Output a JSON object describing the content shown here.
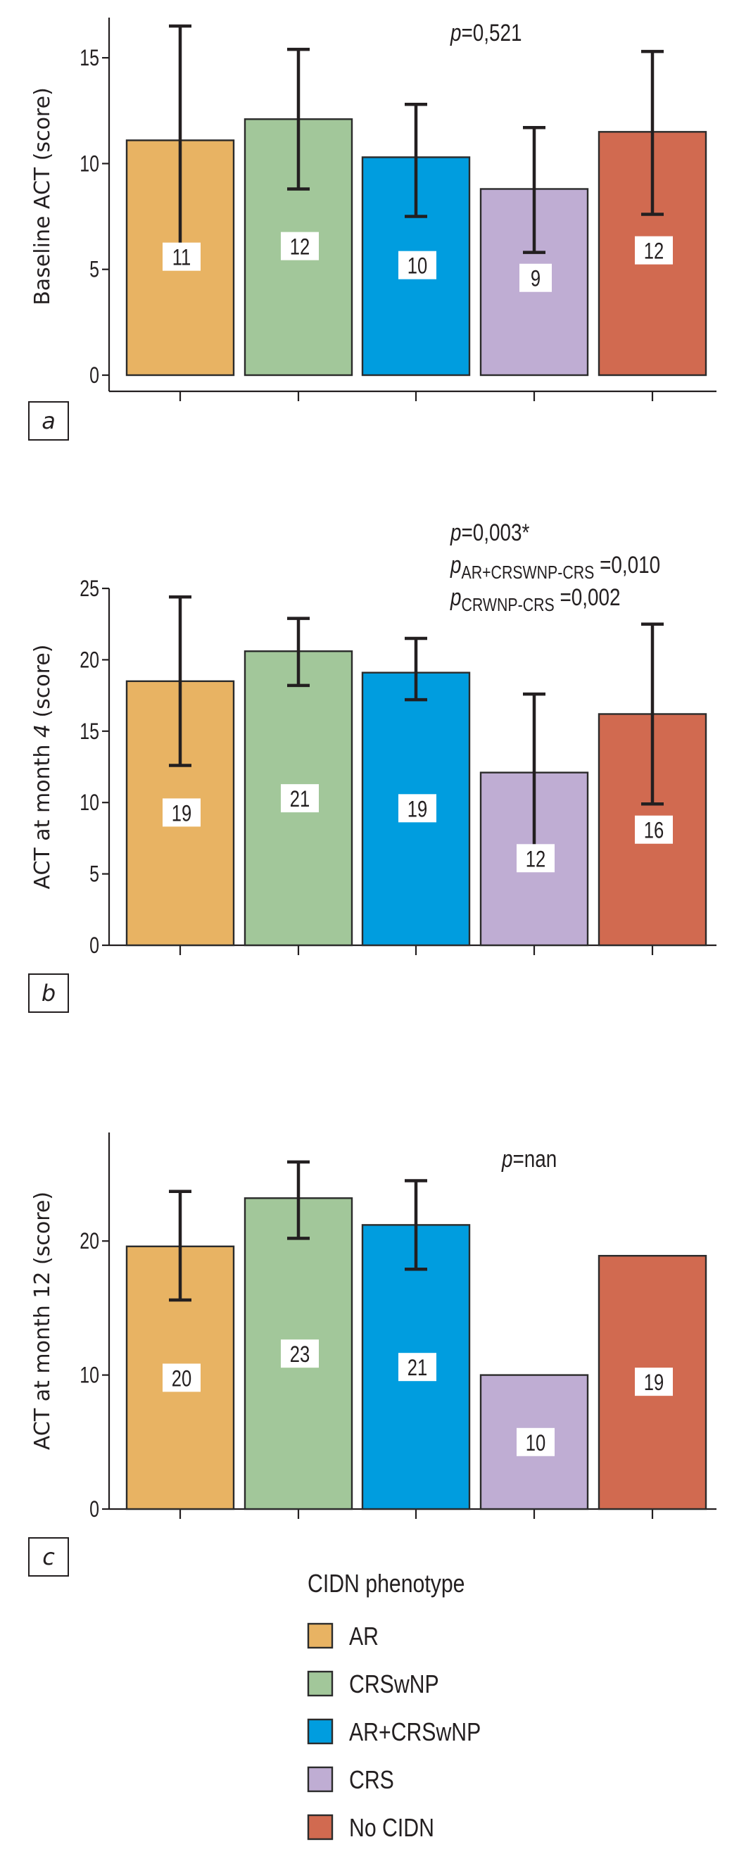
{
  "chart_data": [
    {
      "panel": "a",
      "type": "bar",
      "categories": [
        "AR",
        "CRSwNP",
        "AR+CRSwNP",
        "CRS",
        "No CIDN"
      ],
      "values": [
        11.1,
        12.1,
        10.3,
        8.8,
        11.5
      ],
      "error_low": [
        5.7,
        8.8,
        7.5,
        5.8,
        7.6
      ],
      "error_high": [
        16.5,
        15.4,
        12.8,
        11.7,
        15.3
      ],
      "data_labels": [
        "11",
        "12",
        "10",
        "9",
        "12"
      ],
      "label_positions": [
        5.6,
        6.1,
        5.2,
        4.6,
        5.9
      ],
      "ylabel": "Baseline ACT (score)",
      "ylabel_parts": [
        {
          "text": "Baseline ACT (score)",
          "italic": false
        }
      ],
      "yticks": [
        0,
        5,
        10,
        15
      ],
      "ylim": [
        -0.8,
        16.9
      ],
      "annotations": [
        {
          "lines": [
            [
              {
                "t": "p",
                "i": true
              },
              {
                "t": "=0,521"
              }
            ]
          ]
        }
      ],
      "panel_label": "a"
    },
    {
      "panel": "b",
      "type": "bar",
      "categories": [
        "AR",
        "CRSwNP",
        "AR+CRSwNP",
        "CRS",
        "No CIDN"
      ],
      "values": [
        18.5,
        20.6,
        19.1,
        12.1,
        16.2
      ],
      "error_low": [
        12.6,
        18.2,
        17.2,
        6.6,
        9.9
      ],
      "error_high": [
        24.4,
        22.9,
        21.5,
        17.6,
        22.5
      ],
      "data_labels": [
        "19",
        "21",
        "19",
        "12",
        "16"
      ],
      "label_positions": [
        9.3,
        10.3,
        9.6,
        6.1,
        8.1
      ],
      "ylabel_parts": [
        {
          "text": "ACT at month ",
          "italic": false
        },
        {
          "text": "4",
          "italic": true
        },
        {
          "text": " (score)",
          "italic": false
        }
      ],
      "yticks": [
        0,
        5,
        10,
        15,
        20,
        25
      ],
      "ylim": [
        0,
        25
      ],
      "annotations": [
        {
          "lines": [
            [
              {
                "t": "p",
                "i": true
              },
              {
                "t": "=0,003*"
              }
            ],
            [
              {
                "t": "p",
                "i": true
              },
              {
                "t": "AR+CRSWNP-CRS",
                "sub": true
              },
              {
                "t": " =0,010"
              }
            ],
            [
              {
                "t": "p",
                "i": true
              },
              {
                "t": "CRWNP-CRS",
                "sub": true
              },
              {
                "t": " =0,002"
              }
            ]
          ]
        }
      ],
      "panel_label": "b"
    },
    {
      "panel": "c",
      "type": "bar",
      "categories": [
        "AR",
        "CRSwNP",
        "AR+CRSwNP",
        "CRS",
        "No CIDN"
      ],
      "values": [
        19.6,
        23.2,
        21.2,
        10.0,
        18.9
      ],
      "error_low": [
        15.6,
        20.2,
        17.9,
        null,
        null
      ],
      "error_high": [
        23.7,
        25.9,
        24.5,
        null,
        null
      ],
      "data_labels": [
        "20",
        "23",
        "21",
        "10",
        "19"
      ],
      "label_positions": [
        9.8,
        11.6,
        10.6,
        5.0,
        9.5
      ],
      "ylabel_parts": [
        {
          "text": "ACT at month 12 (score)",
          "italic": false
        }
      ],
      "yticks": [
        0,
        10,
        20
      ],
      "ylim": [
        0,
        28.1
      ],
      "annotations": [
        {
          "lines": [
            [
              {
                "t": "p",
                "i": true
              },
              {
                "t": "=nan"
              }
            ]
          ]
        }
      ],
      "panel_label": "c"
    }
  ],
  "series_colors": {
    "AR": "#e8b363",
    "CRSwNP": "#a2c79a",
    "AR+CRSwNP": "#009ddf",
    "CRS": "#bfadd3",
    "No CIDN": "#d16a50"
  },
  "legend": {
    "title": "CIDN phenotype",
    "items": [
      {
        "label": "AR",
        "color": "#e8b363"
      },
      {
        "label": "CRSwNP",
        "color": "#a2c79a"
      },
      {
        "label": "AR+CRSwNP",
        "color": "#009ddf"
      },
      {
        "label": "CRS",
        "color": "#bfadd3"
      },
      {
        "label": "No CIDN",
        "color": "#d16a50"
      }
    ],
    "placement": "bottom"
  }
}
